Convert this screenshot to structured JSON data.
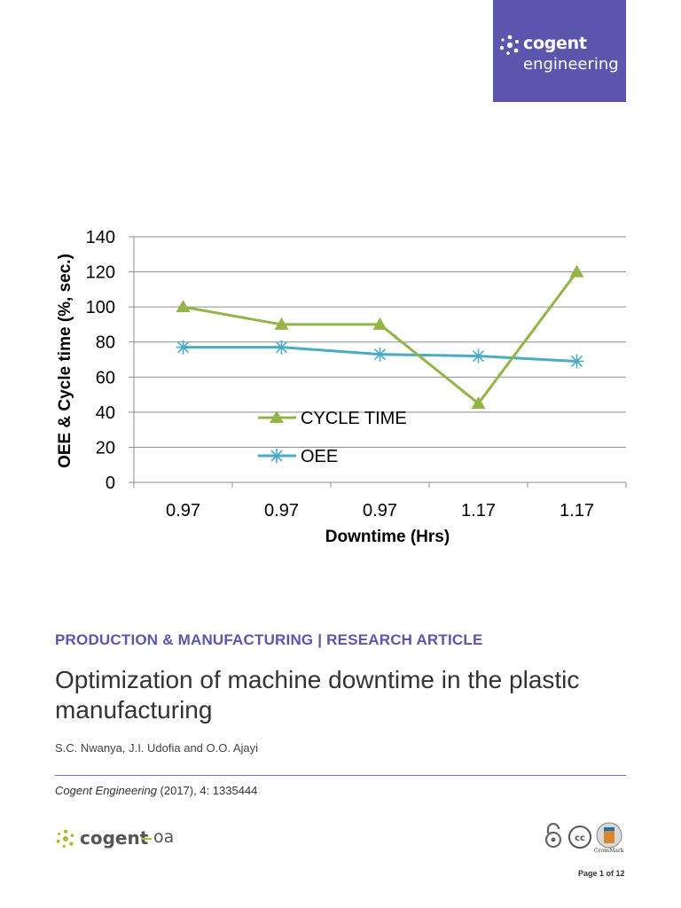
{
  "brand": {
    "name_line1": "cogent",
    "name_line2": "engineering"
  },
  "chart_data": {
    "type": "line",
    "categories": [
      "0.97",
      "0.97",
      "0.97",
      "1.17",
      "1.17"
    ],
    "series": [
      {
        "name": "CYCLE TIME",
        "values": [
          100,
          90,
          90,
          45,
          120
        ],
        "color": "#93b447",
        "marker": "triangle"
      },
      {
        "name": "OEE",
        "values": [
          77,
          77,
          73,
          72,
          69
        ],
        "color": "#4aabc6",
        "marker": "star"
      }
    ],
    "xlabel": "Downtime (Hrs)",
    "ylabel": "OEE & Cycle time (%, sec.)",
    "ylim": [
      0,
      140
    ],
    "yticks": [
      "0",
      "20",
      "40",
      "60",
      "80",
      "100",
      "120",
      "140"
    ],
    "grid": true,
    "legend": "center-left"
  },
  "article": {
    "category": "PRODUCTION & MANUFACTURING | RESEARCH ARTICLE",
    "title": "Optimization of machine downtime in the plastic manufacturing",
    "authors": "S.C. Nwanya, J.I. Udofia and O.O. Ajayi",
    "journal": "Cogent Engineering",
    "citation_rest": " (2017), 4: 1335444"
  },
  "footer": {
    "logo_name": "cogent",
    "logo_suffix": "oa",
    "crossmark_label": "CrossMark",
    "page_label": "Page 1 of 12"
  },
  "colors": {
    "brand": "#5b55ad",
    "accent": "#9ec32b"
  }
}
